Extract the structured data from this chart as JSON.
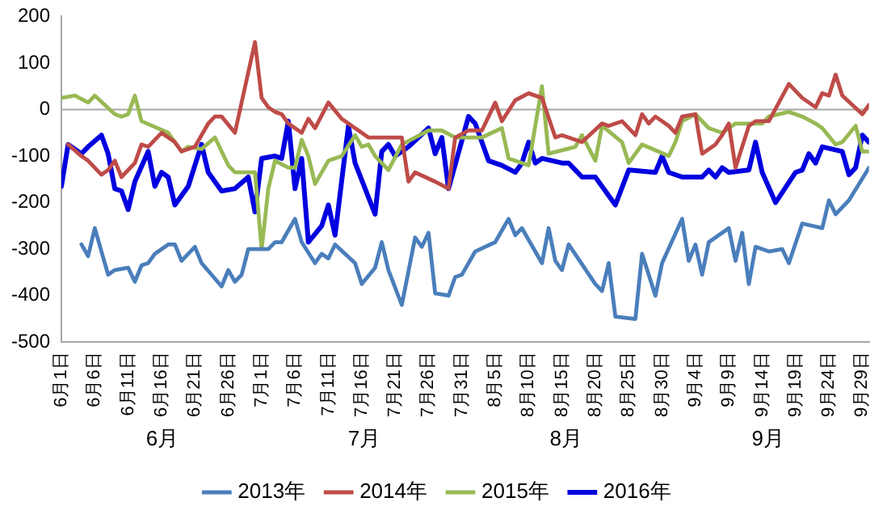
{
  "chart_data": {
    "type": "line",
    "marker": "none",
    "line_style": "solid",
    "grid": false,
    "legend": "bottom",
    "xlim": [
      "--06-01",
      "--09-30"
    ],
    "xticks": [
      {
        "value": "--06-01",
        "label": "6月1日"
      },
      {
        "value": "--06-06",
        "label": "6月6日"
      },
      {
        "value": "--06-11",
        "label": "6月11日"
      },
      {
        "value": "--06-16",
        "label": "6月16日"
      },
      {
        "value": "--06-21",
        "label": "6月21日"
      },
      {
        "value": "--06-26",
        "label": "6月26日"
      },
      {
        "value": "--07-01",
        "label": "7月1日"
      },
      {
        "value": "--07-06",
        "label": "7月6日"
      },
      {
        "value": "--07-11",
        "label": "7月11日"
      },
      {
        "value": "--07-16",
        "label": "7月16日"
      },
      {
        "value": "--07-21",
        "label": "7月21日"
      },
      {
        "value": "--07-26",
        "label": "7月26日"
      },
      {
        "value": "--07-31",
        "label": "7月31日"
      },
      {
        "value": "--08-05",
        "label": "8月5日"
      },
      {
        "value": "--08-10",
        "label": "8月10日"
      },
      {
        "value": "--08-15",
        "label": "8月15日"
      },
      {
        "value": "--08-20",
        "label": "8月20日"
      },
      {
        "value": "--08-25",
        "label": "8月25日"
      },
      {
        "value": "--08-30",
        "label": "8月30日"
      },
      {
        "value": "--09-04",
        "label": "9月4日"
      },
      {
        "value": "--09-09",
        "label": "9月9日"
      },
      {
        "value": "--09-14",
        "label": "9月14日"
      },
      {
        "value": "--09-19",
        "label": "9月19日"
      },
      {
        "value": "--09-24",
        "label": "9月24日"
      },
      {
        "value": "--09-29",
        "label": "9月29日"
      }
    ],
    "ylim": [
      -500,
      200
    ],
    "yticks": [
      -500,
      -400,
      -300,
      -200,
      -100,
      0,
      100,
      200
    ],
    "ref_lines": [
      {
        "axis": "y",
        "value": 0,
        "color": "#a6a6a6"
      }
    ],
    "annotations": [
      "6月",
      "7月",
      "8月",
      "9月"
    ],
    "series": [
      {
        "name": "2013年",
        "color": "#4a7ebb",
        "x": [
          "--06-04",
          "--06-05",
          "--06-06",
          "--06-08",
          "--06-09",
          "--06-11",
          "--06-12",
          "--06-13",
          "--06-14",
          "--06-15",
          "--06-17",
          "--06-18",
          "--06-19",
          "--06-21",
          "--06-22",
          "--06-25",
          "--06-26",
          "--06-27",
          "--06-28",
          "--06-29",
          "--07-01",
          "--07-02",
          "--07-03",
          "--07-04",
          "--07-06",
          "--07-07",
          "--07-09",
          "--07-10",
          "--07-11",
          "--07-12",
          "--07-15",
          "--07-16",
          "--07-18",
          "--07-19",
          "--07-20",
          "--07-22",
          "--07-24",
          "--07-25",
          "--07-26",
          "--07-27",
          "--07-29",
          "--07-30",
          "--07-31",
          "--08-02",
          "--08-05",
          "--08-07",
          "--08-08",
          "--08-09",
          "--08-12",
          "--08-13",
          "--08-14",
          "--08-15",
          "--08-16",
          "--08-20",
          "--08-21",
          "--08-22",
          "--08-23",
          "--08-26",
          "--08-27",
          "--08-29",
          "--08-30",
          "--09-02",
          "--09-03",
          "--09-04",
          "--09-05",
          "--09-06",
          "--09-09",
          "--09-10",
          "--09-11",
          "--09-12",
          "--09-13",
          "--09-15",
          "--09-17",
          "--09-18",
          "--09-20",
          "--09-23",
          "--09-24",
          "--09-25",
          "--09-27",
          "--09-30"
        ],
        "values": [
          -290,
          -315,
          -255,
          -355,
          -345,
          -340,
          -370,
          -335,
          -330,
          -310,
          -290,
          -290,
          -325,
          -295,
          -330,
          -380,
          -345,
          -370,
          -355,
          -300,
          -300,
          -300,
          -285,
          -285,
          -235,
          -285,
          -330,
          -310,
          -320,
          -290,
          -330,
          -375,
          -340,
          -285,
          -345,
          -420,
          -275,
          -295,
          -265,
          -395,
          -400,
          -360,
          -355,
          -305,
          -285,
          -235,
          -270,
          -255,
          -330,
          -255,
          -325,
          -345,
          -290,
          -375,
          -390,
          -330,
          -445,
          -450,
          -310,
          -400,
          -330,
          -235,
          -325,
          -290,
          -355,
          -285,
          -255,
          -325,
          -265,
          -375,
          -295,
          -305,
          -300,
          -330,
          -245,
          -255,
          -195,
          -225,
          -195,
          -125
        ]
      },
      {
        "name": "2014年",
        "color": "#be4b48",
        "x": [
          "--06-02",
          "--06-04",
          "--06-05",
          "--06-07",
          "--06-08",
          "--06-09",
          "--06-10",
          "--06-12",
          "--06-13",
          "--06-14",
          "--06-16",
          "--06-18",
          "--06-19",
          "--06-21",
          "--06-23",
          "--06-24",
          "--06-25",
          "--06-27",
          "--06-30",
          "--07-01",
          "--07-02",
          "--07-03",
          "--07-04",
          "--07-05",
          "--07-07",
          "--07-08",
          "--07-09",
          "--07-11",
          "--07-13",
          "--07-15",
          "--07-17",
          "--07-19",
          "--07-22",
          "--07-23",
          "--07-24",
          "--07-27",
          "--07-29",
          "--07-30",
          "--08-01",
          "--08-03",
          "--08-05",
          "--08-06",
          "--08-08",
          "--08-10",
          "--08-12",
          "--08-14",
          "--08-15",
          "--08-18",
          "--08-21",
          "--08-22",
          "--08-24",
          "--08-26",
          "--08-27",
          "--08-28",
          "--08-29",
          "--08-31",
          "--09-01",
          "--09-02",
          "--09-04",
          "--09-05",
          "--09-07",
          "--09-08",
          "--09-09",
          "--09-10",
          "--09-12",
          "--09-13",
          "--09-15",
          "--09-18",
          "--09-20",
          "--09-22",
          "--09-23",
          "--09-24",
          "--09-25",
          "--09-26",
          "--09-29",
          "--09-30"
        ],
        "values": [
          -75,
          -100,
          -110,
          -140,
          -130,
          -110,
          -145,
          -115,
          -75,
          -80,
          -50,
          -70,
          -90,
          -80,
          -30,
          -15,
          -15,
          -50,
          145,
          25,
          5,
          -5,
          -10,
          -30,
          -50,
          -20,
          -40,
          15,
          -20,
          -40,
          -60,
          -60,
          -60,
          -155,
          -135,
          -155,
          -170,
          -60,
          -45,
          -45,
          15,
          -25,
          20,
          35,
          25,
          -60,
          -55,
          -70,
          -30,
          -35,
          -25,
          -55,
          -10,
          -30,
          -15,
          -35,
          -50,
          -15,
          -10,
          -95,
          -75,
          -55,
          -30,
          -125,
          -35,
          -25,
          -25,
          55,
          25,
          5,
          35,
          30,
          75,
          30,
          -10,
          10
        ]
      },
      {
        "name": "2015年",
        "color": "#98b954",
        "x": [
          "--06-01",
          "--06-03",
          "--06-05",
          "--06-06",
          "--06-09",
          "--06-10",
          "--06-11",
          "--06-12",
          "--06-13",
          "--06-17",
          "--06-19",
          "--06-20",
          "--06-22",
          "--06-24",
          "--06-26",
          "--06-27",
          "--06-30",
          "--07-01",
          "--07-02",
          "--07-03",
          "--07-05",
          "--07-06",
          "--07-07",
          "--07-08",
          "--07-09",
          "--07-11",
          "--07-13",
          "--07-15",
          "--07-16",
          "--07-17",
          "--07-18",
          "--07-20",
          "--07-22",
          "--07-24",
          "--07-26",
          "--07-28",
          "--07-30",
          "--08-01",
          "--08-03",
          "--08-06",
          "--08-07",
          "--08-08",
          "--08-10",
          "--08-12",
          "--08-13",
          "--08-17",
          "--08-18",
          "--08-20",
          "--08-21",
          "--08-24",
          "--08-25",
          "--08-27",
          "--08-31",
          "--09-01",
          "--09-02",
          "--09-04",
          "--09-06",
          "--09-08",
          "--09-10",
          "--09-14",
          "--09-15",
          "--09-18",
          "--09-20",
          "--09-22",
          "--09-23",
          "--09-25",
          "--09-26",
          "--09-28",
          "--09-29",
          "--09-30"
        ],
        "values": [
          25,
          30,
          15,
          30,
          -10,
          -15,
          -10,
          30,
          -25,
          -50,
          -90,
          -80,
          -85,
          -60,
          -120,
          -135,
          -135,
          -300,
          -170,
          -110,
          -125,
          -125,
          -65,
          -100,
          -160,
          -110,
          -100,
          -55,
          -80,
          -75,
          -100,
          -130,
          -75,
          -60,
          -45,
          -45,
          -60,
          -60,
          -60,
          -40,
          -105,
          -110,
          -120,
          50,
          -95,
          -80,
          -55,
          -110,
          -35,
          -70,
          -115,
          -75,
          -100,
          -70,
          -25,
          -10,
          -40,
          -50,
          -30,
          -30,
          -15,
          -5,
          -15,
          -30,
          -40,
          -75,
          -70,
          -35,
          -90,
          -90
        ]
      },
      {
        "name": "2016年",
        "color": "#0000e0",
        "x": [
          "--06-01",
          "--06-02",
          "--06-04",
          "--06-05",
          "--06-07",
          "--06-08",
          "--06-09",
          "--06-10",
          "--06-11",
          "--06-12",
          "--06-14",
          "--06-15",
          "--06-16",
          "--06-17",
          "--06-18",
          "--06-20",
          "--06-22",
          "--06-23",
          "--06-25",
          "--06-27",
          "--06-29",
          "--06-30",
          "--07-01",
          "--07-03",
          "--07-04",
          "--07-05",
          "--07-06",
          "--07-07",
          "--07-08",
          "--07-10",
          "--07-11",
          "--07-12",
          "--07-14",
          "--07-15",
          "--07-18",
          "--07-19",
          "--07-20",
          "--07-21",
          "--07-23",
          "--07-26",
          "--07-27",
          "--07-28",
          "--07-29",
          "--08-01",
          "--08-02",
          "--08-04",
          "--08-06",
          "--08-08",
          "--08-09",
          "--08-10",
          "--08-11",
          "--08-12",
          "--08-15",
          "--08-16",
          "--08-17",
          "--08-18",
          "--08-20",
          "--08-23",
          "--08-25",
          "--08-29",
          "--08-30",
          "--08-31",
          "--09-02",
          "--09-05",
          "--09-06",
          "--09-07",
          "--09-08",
          "--09-09",
          "--09-12",
          "--09-13",
          "--09-14",
          "--09-16",
          "--09-19",
          "--09-20",
          "--09-21",
          "--09-22",
          "--09-23",
          "--09-26",
          "--09-27",
          "--09-28",
          "--09-29",
          "--09-30"
        ],
        "values": [
          -165,
          -75,
          -95,
          -80,
          -55,
          -95,
          -170,
          -175,
          -215,
          -155,
          -90,
          -165,
          -135,
          -145,
          -205,
          -165,
          -75,
          -135,
          -175,
          -170,
          -145,
          -220,
          -105,
          -100,
          -105,
          -25,
          -170,
          -105,
          -285,
          -250,
          -205,
          -270,
          -35,
          -115,
          -225,
          -90,
          -75,
          -100,
          -80,
          -40,
          -95,
          -60,
          -170,
          -15,
          -30,
          -110,
          -120,
          -135,
          -115,
          -70,
          -115,
          -105,
          -115,
          -115,
          -130,
          -145,
          -145,
          -205,
          -130,
          -135,
          -100,
          -135,
          -145,
          -145,
          -130,
          -145,
          -125,
          -135,
          -130,
          -70,
          -135,
          -200,
          -135,
          -130,
          -95,
          -115,
          -80,
          -90,
          -140,
          -125,
          -55,
          -70
        ]
      }
    ]
  }
}
